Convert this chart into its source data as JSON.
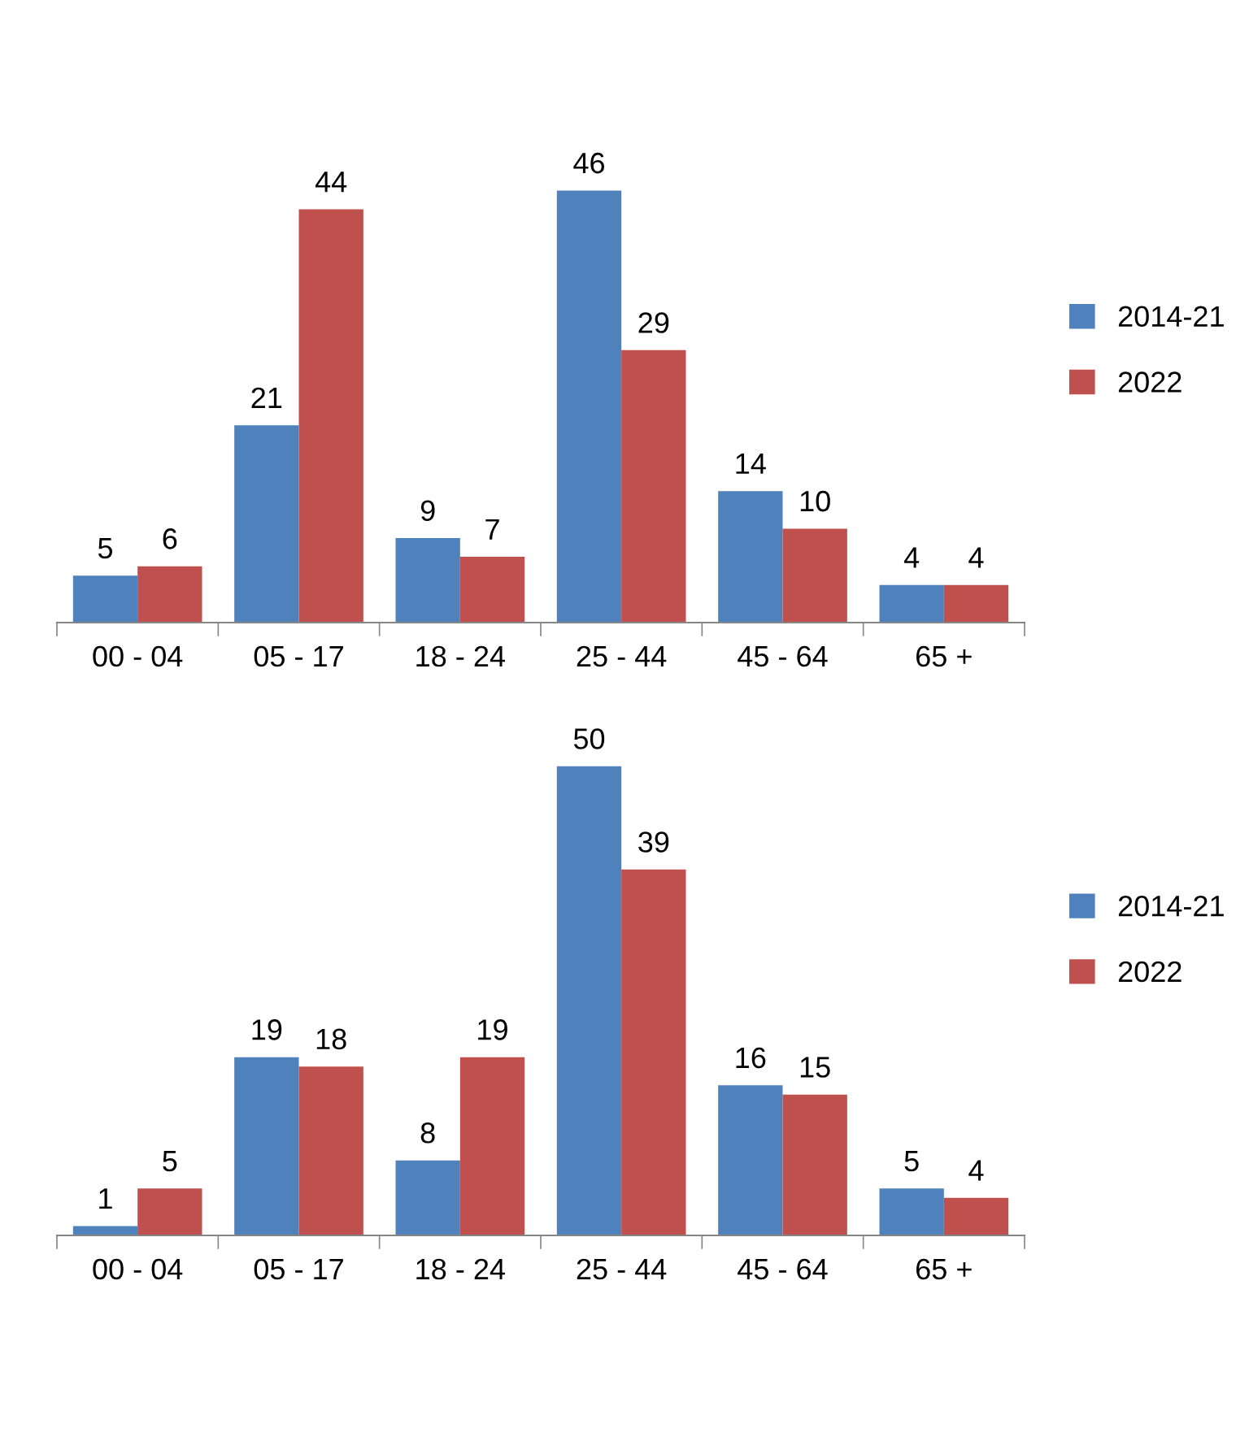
{
  "chart_data": [
    {
      "type": "bar",
      "categories": [
        "00 - 04",
        "05 - 17",
        "18 - 24",
        "25 - 44",
        "45 - 64",
        "65 +"
      ],
      "series": [
        {
          "name": "2014-21",
          "color": "#4f81bd",
          "values": [
            5,
            21,
            9,
            46,
            14,
            4
          ]
        },
        {
          "name": "2022",
          "color": "#c0504d",
          "values": [
            6,
            44,
            7,
            29,
            10,
            4
          ]
        }
      ],
      "data_labels": true,
      "legend": "right",
      "tick_labels": "x",
      "grid": false
    },
    {
      "type": "bar",
      "categories": [
        "00 - 04",
        "05 - 17",
        "18 - 24",
        "25 - 44",
        "45 - 64",
        "65 +"
      ],
      "series": [
        {
          "name": "2014-21",
          "color": "#4f81bd",
          "values": [
            1,
            19,
            8,
            50,
            16,
            5
          ]
        },
        {
          "name": "2022",
          "color": "#c0504d",
          "values": [
            5,
            18,
            19,
            39,
            15,
            4
          ]
        }
      ],
      "data_labels": true,
      "legend": "right",
      "tick_labels": "x",
      "grid": false
    }
  ]
}
